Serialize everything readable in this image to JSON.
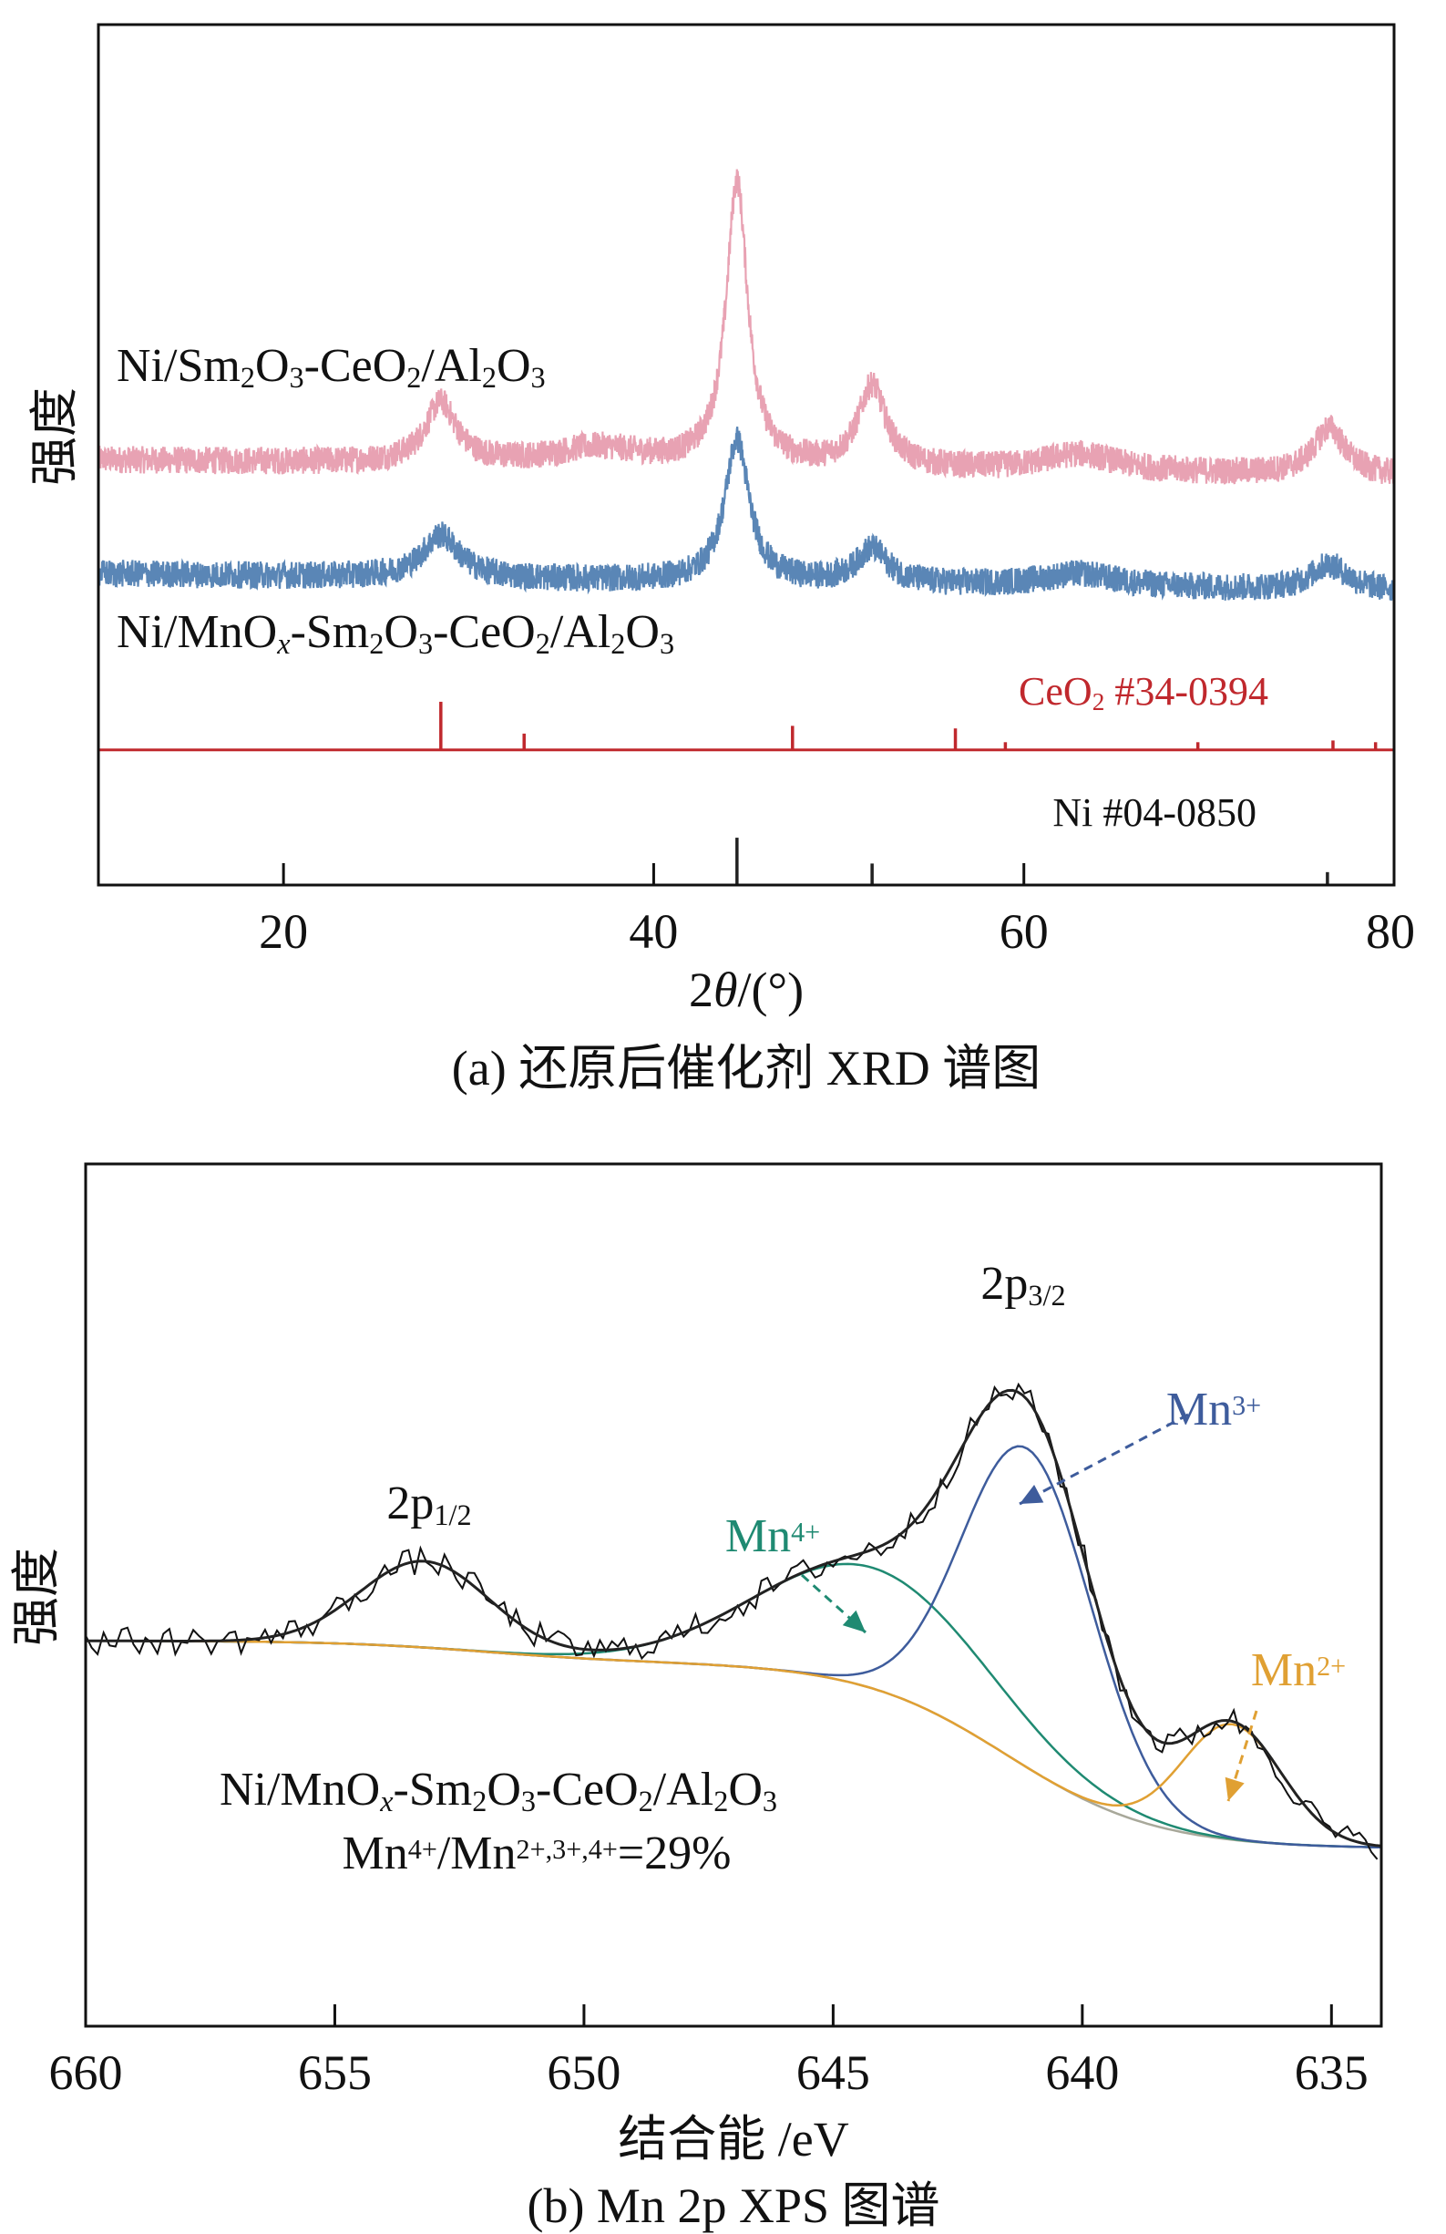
{
  "chart_data": [
    {
      "type": "line",
      "title": "(a) 还原后催化剂 XRD 谱图",
      "xlabel": "2θ/(°)",
      "xlabel_segments": [
        {
          "t": "2"
        },
        {
          "t": "θ",
          "s": "it"
        },
        {
          "t": "/(°)"
        }
      ],
      "ylabel": "强度",
      "xlim": [
        10,
        80
      ],
      "ylim": [
        0,
        100
      ],
      "xticks": [
        20,
        40,
        60,
        80
      ],
      "grid": false,
      "series": [
        {
          "name": "Ni/Sm2O3-CeO2/Al2O3",
          "label_segments": [
            {
              "t": "Ni/Sm"
            },
            {
              "t": "2",
              "s": "sub"
            },
            {
              "t": "O"
            },
            {
              "t": "3",
              "s": "sub"
            },
            {
              "t": "-CeO"
            },
            {
              "t": "2",
              "s": "sub"
            },
            {
              "t": "/Al"
            },
            {
              "t": "2",
              "s": "sub"
            },
            {
              "t": "O"
            },
            {
              "t": "3",
              "s": "sub"
            }
          ],
          "color": "#e8a2b3",
          "baseline": [
            49.4,
            47.5
          ],
          "peaks": [
            {
              "center": 28.5,
              "height": 7,
              "width": 1.0
            },
            {
              "center": 37,
              "height": 2,
              "width": 3
            },
            {
              "center": 44.5,
              "height": 33,
              "width": 0.7
            },
            {
              "center": 51.8,
              "height": 9.5,
              "width": 0.9
            },
            {
              "center": 63,
              "height": 2,
              "width": 2.5
            },
            {
              "center": 76.5,
              "height": 5.5,
              "width": 1.0
            }
          ]
        },
        {
          "name": "Ni/MnOx-Sm2O3-CeO2/Al2O3",
          "label_segments": [
            {
              "t": "Ni/MnO"
            },
            {
              "t": "x",
              "s": "subit"
            },
            {
              "t": "-Sm"
            },
            {
              "t": "2",
              "s": "sub"
            },
            {
              "t": "O"
            },
            {
              "t": "3",
              "s": "sub"
            },
            {
              "t": "-CeO"
            },
            {
              "t": "2",
              "s": "sub"
            },
            {
              "t": "/Al"
            },
            {
              "t": "2",
              "s": "sub"
            },
            {
              "t": "O"
            },
            {
              "t": "3",
              "s": "sub"
            }
          ],
          "color": "#5a86b6",
          "baseline": [
            36.2,
            34.1
          ],
          "peaks": [
            {
              "center": 28.5,
              "height": 5,
              "width": 1.2
            },
            {
              "center": 44.5,
              "height": 16.5,
              "width": 0.8
            },
            {
              "center": 51.8,
              "height": 4,
              "width": 1.0
            },
            {
              "center": 63,
              "height": 1.5,
              "width": 2.5
            },
            {
              "center": 76.5,
              "height": 3,
              "width": 1.2
            }
          ]
        }
      ],
      "reference_patterns": [
        {
          "name": "CeO2 #34-0394",
          "label_segments": [
            {
              "t": "CeO"
            },
            {
              "t": "2",
              "s": "sub"
            },
            {
              "t": " #34-0394"
            }
          ],
          "color": "#c0282d",
          "base": 15.7,
          "lines": [
            [
              28.5,
              21.3
            ],
            [
              33.0,
              17.6
            ],
            [
              47.5,
              18.5
            ],
            [
              56.3,
              18.2
            ],
            [
              59.0,
              16.6
            ],
            [
              69.4,
              16.6
            ],
            [
              76.7,
              16.8
            ],
            [
              79.0,
              16.6
            ]
          ]
        },
        {
          "name": "Ni #04-0850",
          "label_segments": [
            {
              "t": "Ni #04-0850"
            }
          ],
          "color": "#222222",
          "base": 0,
          "lines": [
            [
              44.5,
              5.5
            ],
            [
              51.8,
              2.5
            ],
            [
              76.4,
              1.5
            ]
          ]
        }
      ]
    },
    {
      "type": "line",
      "title": "(b) Mn 2p XPS 图谱",
      "xlabel": "结合能 /eV",
      "ylabel": "强度",
      "xlim": [
        660,
        634
      ],
      "ylim": [
        0,
        100
      ],
      "xticks": [
        660,
        655,
        650,
        645,
        640,
        635
      ],
      "grid": false,
      "background": {
        "low": 20.6,
        "step1": 21.6,
        "center1": 641.5,
        "step2": 2.5,
        "center2": 652,
        "width": 1.5,
        "color": "#a8a89a"
      },
      "components": [
        {
          "name": "Mn4+",
          "center": 644.2,
          "height": 14,
          "width": 2.3,
          "color": "#1f8a72"
        },
        {
          "name": "Mn3+",
          "center": 641.1,
          "height": 37,
          "width": 1.3,
          "color": "#3e5c9c"
        },
        {
          "name": "Mn2+",
          "center": 637.0,
          "height": 13.4,
          "width": 1.0,
          "color": "#e0a033"
        },
        {
          "name": "2p1/2",
          "center": 653.2,
          "height": 10,
          "width": 1.3
        }
      ],
      "envelope_color": "#222222",
      "raw_color": "#111111",
      "annotations": {
        "p32": [
          {
            "t": "2p"
          },
          {
            "t": "3/2",
            "s": "sub"
          }
        ],
        "p12": [
          {
            "t": "2p"
          },
          {
            "t": "1/2",
            "s": "sub"
          }
        ],
        "mn3": [
          {
            "t": "Mn"
          },
          {
            "t": "3+",
            "s": "sup"
          }
        ],
        "mn4": [
          {
            "t": "Mn"
          },
          {
            "t": "4+",
            "s": "sup"
          }
        ],
        "mn2": [
          {
            "t": "Mn"
          },
          {
            "t": "2+",
            "s": "sup"
          }
        ],
        "sample": [
          {
            "t": "Ni/MnO"
          },
          {
            "t": "x",
            "s": "subit"
          },
          {
            "t": "-Sm"
          },
          {
            "t": "2",
            "s": "sub"
          },
          {
            "t": "O"
          },
          {
            "t": "3",
            "s": "sub"
          },
          {
            "t": "-CeO"
          },
          {
            "t": "2",
            "s": "sub"
          },
          {
            "t": "/Al"
          },
          {
            "t": "2",
            "s": "sub"
          },
          {
            "t": "O"
          },
          {
            "t": "3",
            "s": "sub"
          }
        ],
        "ratio": [
          {
            "t": "Mn"
          },
          {
            "t": "4+",
            "s": "sup"
          },
          {
            "t": "/Mn"
          },
          {
            "t": "2+,3+,4+",
            "s": "sup"
          },
          {
            "t": "=29%"
          }
        ]
      },
      "ratio_value": "29%"
    }
  ]
}
